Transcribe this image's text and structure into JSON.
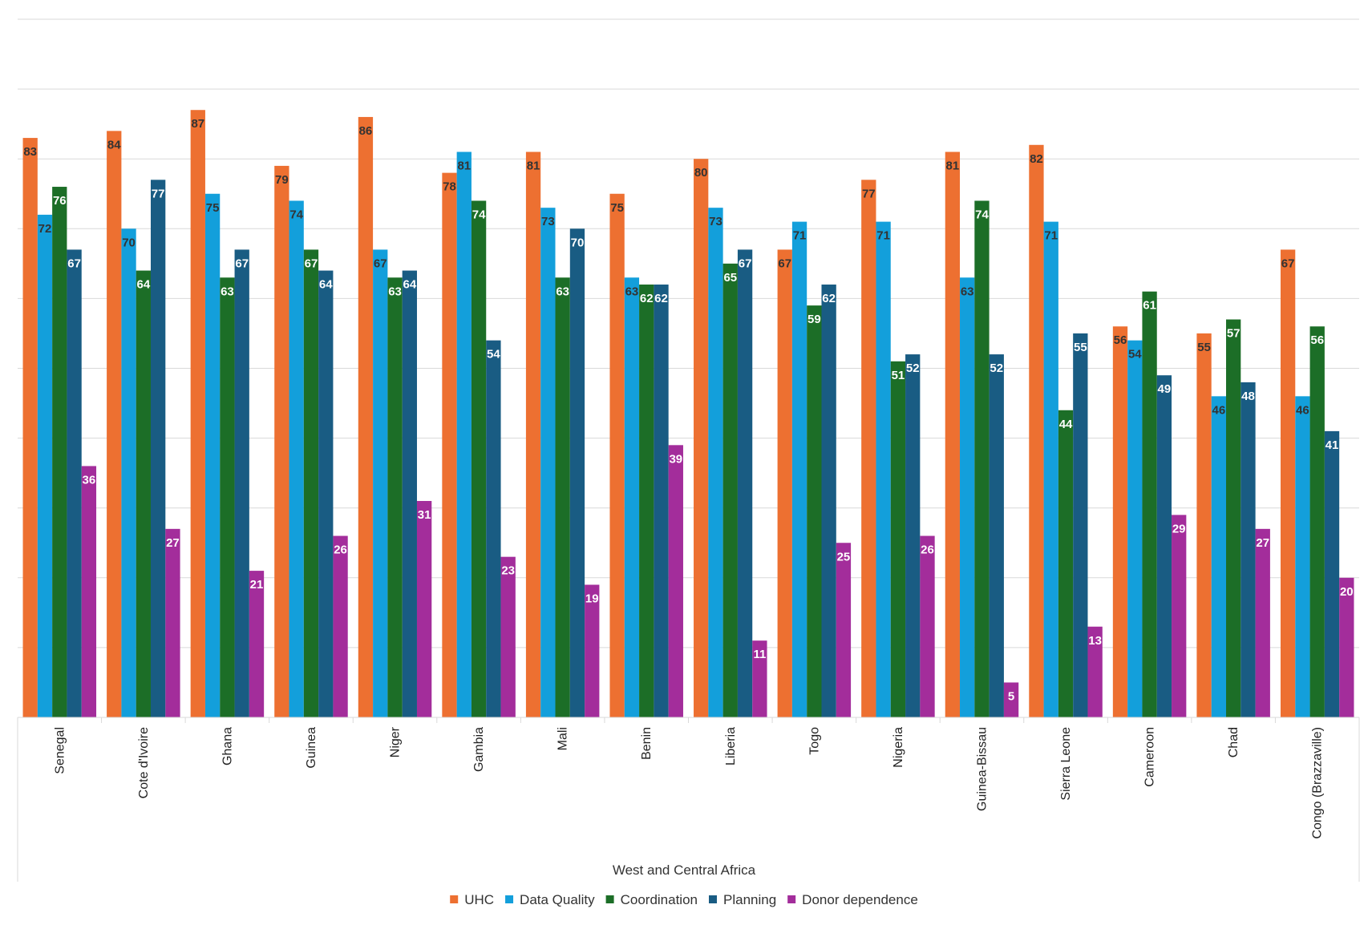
{
  "chart_data": {
    "type": "bar",
    "title": "",
    "xlabel": "West and Central Africa",
    "ylabel": "",
    "ylim": [
      0,
      100
    ],
    "grid": true,
    "legend_position": "bottom",
    "categories": [
      "Senegal",
      "Cote d'Ivoire",
      "Ghana",
      "Guinea",
      "Niger",
      "Gambia",
      "Mali",
      "Benin",
      "Liberia",
      "Togo",
      "Nigeria",
      "Guinea-Bissau",
      "Sierra Leone",
      "Cameroon",
      "Chad",
      "Congo (Brazzaville)"
    ],
    "series": [
      {
        "name": "UHC",
        "color": "#ED7031",
        "label_color": "#333333",
        "values": [
          83,
          84,
          87,
          79,
          86,
          78,
          81,
          75,
          80,
          67,
          77,
          81,
          82,
          56,
          55,
          67
        ]
      },
      {
        "name": "Data Quality",
        "color": "#139FDB",
        "label_color": "#333333",
        "values": [
          72,
          70,
          75,
          74,
          67,
          81,
          73,
          63,
          73,
          71,
          71,
          63,
          71,
          54,
          46,
          46
        ]
      },
      {
        "name": "Coordination",
        "color": "#1C6E27",
        "label_color": "#ffffff",
        "values": [
          76,
          64,
          63,
          67,
          63,
          74,
          63,
          62,
          65,
          59,
          51,
          74,
          44,
          61,
          57,
          56
        ]
      },
      {
        "name": "Planning",
        "color": "#195C83",
        "label_color": "#ffffff",
        "values": [
          67,
          77,
          67,
          64,
          64,
          54,
          70,
          62,
          67,
          62,
          52,
          52,
          55,
          49,
          48,
          41
        ]
      },
      {
        "name": "Donor dependence",
        "color": "#A32D9B",
        "label_color": "#ffffff",
        "values": [
          36,
          27,
          21,
          26,
          31,
          23,
          19,
          39,
          11,
          25,
          26,
          5,
          13,
          29,
          27,
          20
        ]
      }
    ]
  }
}
